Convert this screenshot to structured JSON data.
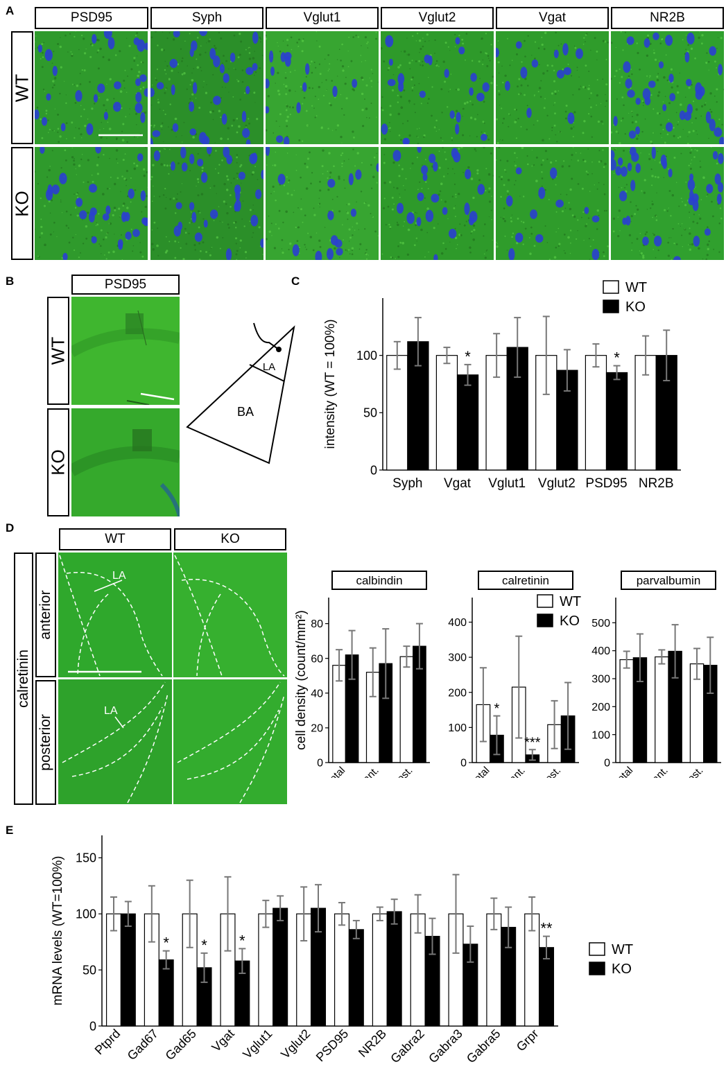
{
  "panel_labels": {
    "a": "A",
    "b": "B",
    "c": "C",
    "d": "D",
    "e": "E"
  },
  "panel_a": {
    "markers": [
      "PSD95",
      "Syph",
      "Vglut1",
      "Vglut2",
      "Vgat",
      "NR2B"
    ],
    "rows": [
      "WT",
      "KO"
    ]
  },
  "panel_b": {
    "marker": "PSD95",
    "rows": [
      "WT",
      "KO"
    ],
    "diagram": {
      "la": "LA",
      "ba": "BA"
    }
  },
  "panel_d": {
    "columns": [
      "WT",
      "KO"
    ],
    "stain": "calretinin",
    "rows": [
      "anterior",
      "posterior"
    ],
    "la_label": "LA"
  },
  "chart_data": [
    {
      "id": "C",
      "type": "bar",
      "categories": [
        "Syph",
        "Vgat",
        "Vglut1",
        "Vglut2",
        "PSD95",
        "NR2B"
      ],
      "series": [
        {
          "name": "WT",
          "values": [
            100,
            100,
            100,
            100,
            100,
            100
          ],
          "err": [
            12,
            7,
            19,
            34,
            10,
            17
          ]
        },
        {
          "name": "KO",
          "values": [
            112,
            83,
            107,
            87,
            85,
            100
          ],
          "err": [
            21,
            9,
            26,
            18,
            6,
            22
          ]
        }
      ],
      "significance": [
        "",
        "*",
        "",
        "",
        "*",
        ""
      ],
      "ylabel": "intensity (WT = 100%)",
      "yticks": [
        0,
        50,
        100
      ],
      "ylim": [
        0,
        150
      ],
      "legend": "top-right",
      "colors": {
        "WT": "#ffffff",
        "KO": "#000000"
      }
    },
    {
      "id": "D-calbindin",
      "type": "bar",
      "title": "calbindin",
      "categories": [
        "total",
        "ant.",
        "post."
      ],
      "series": [
        {
          "name": "WT",
          "values": [
            56,
            52,
            61
          ],
          "err": [
            9,
            14,
            6
          ]
        },
        {
          "name": "KO",
          "values": [
            62,
            57,
            67
          ],
          "err": [
            14,
            20,
            13
          ]
        }
      ],
      "ylabel": "cell density (count/mm²)",
      "yticks": [
        0,
        20,
        40,
        60,
        80
      ],
      "ylim": [
        0,
        95
      ]
    },
    {
      "id": "D-calretinin",
      "type": "bar",
      "title": "calretinin",
      "categories": [
        "total",
        "ant.",
        "post."
      ],
      "series": [
        {
          "name": "WT",
          "values": [
            165,
            215,
            108
          ],
          "err": [
            105,
            145,
            68
          ]
        },
        {
          "name": "KO",
          "values": [
            78,
            22,
            133
          ],
          "err": [
            55,
            15,
            95
          ]
        }
      ],
      "significance": [
        "*",
        "***",
        ""
      ],
      "yticks": [
        0,
        100,
        200,
        300,
        400
      ],
      "ylim": [
        0,
        470
      ],
      "legend": "top-right",
      "colors": {
        "WT": "#ffffff",
        "KO": "#000000"
      }
    },
    {
      "id": "D-parvalbumin",
      "type": "bar",
      "title": "parvalbumin",
      "categories": [
        "total",
        "ant.",
        "post."
      ],
      "series": [
        {
          "name": "WT",
          "values": [
            368,
            378,
            353
          ],
          "err": [
            30,
            25,
            55
          ]
        },
        {
          "name": "KO",
          "values": [
            375,
            398,
            348
          ],
          "err": [
            85,
            95,
            100
          ]
        }
      ],
      "yticks": [
        0,
        100,
        200,
        300,
        400,
        500
      ],
      "ylim": [
        0,
        590
      ]
    },
    {
      "id": "E",
      "type": "bar",
      "categories": [
        "Ptprd",
        "Gad67",
        "Gad65",
        "Vgat",
        "Vglut1",
        "Vglut2",
        "PSD95",
        "NR2B",
        "Gabra2",
        "Gabra3",
        "Gabra5",
        "Grpr"
      ],
      "series": [
        {
          "name": "WT",
          "values": [
            100,
            100,
            100,
            100,
            100,
            100,
            100,
            100,
            100,
            100,
            100,
            100
          ],
          "err": [
            15,
            25,
            30,
            33,
            12,
            24,
            10,
            6,
            17,
            35,
            14,
            15
          ]
        },
        {
          "name": "KO",
          "values": [
            100,
            59,
            52,
            58,
            105,
            105,
            86,
            102,
            80,
            73,
            88,
            70
          ],
          "err": [
            11,
            8,
            13,
            11,
            11,
            21,
            8,
            11,
            16,
            16,
            18,
            10
          ]
        }
      ],
      "significance": [
        "",
        "*",
        "*",
        "*",
        "",
        "",
        "",
        "",
        "",
        "",
        "",
        "**"
      ],
      "ylabel": "mRNA levels (WT=100%)",
      "yticks": [
        0,
        50,
        100,
        150
      ],
      "ylim": [
        0,
        170
      ],
      "legend": "right",
      "colors": {
        "WT": "#ffffff",
        "KO": "#000000"
      }
    }
  ]
}
